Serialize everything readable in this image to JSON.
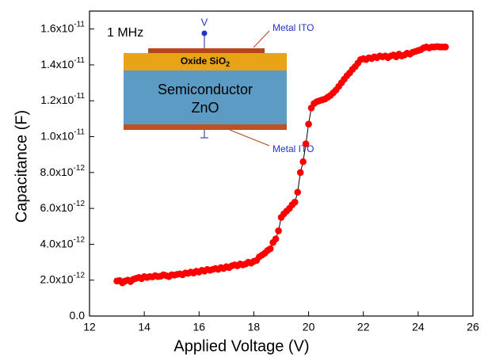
{
  "chart_data": {
    "type": "scatter-line",
    "x_label": "Applied Voltage (V)",
    "y_label": "Capacitance (F)",
    "xlim": [
      12,
      26
    ],
    "ylim": [
      0,
      1.7e-11
    ],
    "xticks": [
      12,
      14,
      16,
      18,
      20,
      22,
      24,
      26
    ],
    "yticks": [
      {
        "value": 0,
        "label": "0.0"
      },
      {
        "value": 2e-12,
        "label": "2.0x10",
        "exponent": "-12"
      },
      {
        "value": 4e-12,
        "label": "4.0x10",
        "exponent": "-12"
      },
      {
        "value": 6e-12,
        "label": "6.0x10",
        "exponent": "-12"
      },
      {
        "value": 8e-12,
        "label": "8.0x10",
        "exponent": "-12"
      },
      {
        "value": 1e-11,
        "label": "1.0x10",
        "exponent": "-11"
      },
      {
        "value": 1.2e-11,
        "label": "1.2x10",
        "exponent": "-11"
      },
      {
        "value": 1.4e-11,
        "label": "1.4x10",
        "exponent": "-11"
      },
      {
        "value": 1.6e-11,
        "label": "1.6x10",
        "exponent": "-11"
      }
    ],
    "color": "#ff0000",
    "line_color": "#000000",
    "inset": {
      "frequency": "1 MHz",
      "voltage_label": "V",
      "top_contact": "Metal ITO",
      "oxide": "Oxide SiO",
      "oxide_subscript": "2",
      "semiconductor": [
        "Semiconductor",
        "ZnO"
      ],
      "bottom_contact": "Metal ITO"
    },
    "x": [
      13.0,
      13.1,
      13.2,
      13.3,
      13.4,
      13.5,
      13.6,
      13.7,
      13.8,
      13.9,
      14.0,
      14.1,
      14.2,
      14.3,
      14.4,
      14.5,
      14.6,
      14.7,
      14.8,
      14.9,
      15.0,
      15.1,
      15.2,
      15.3,
      15.4,
      15.5,
      15.6,
      15.7,
      15.8,
      15.9,
      16.0,
      16.1,
      16.2,
      16.3,
      16.4,
      16.5,
      16.6,
      16.7,
      16.8,
      16.9,
      17.0,
      17.1,
      17.2,
      17.3,
      17.4,
      17.5,
      17.6,
      17.7,
      17.8,
      17.9,
      18.0,
      18.1,
      18.2,
      18.3,
      18.4,
      18.5,
      18.6,
      18.7,
      18.8,
      18.9,
      19.0,
      19.1,
      19.2,
      19.3,
      19.4,
      19.5,
      19.6,
      19.7,
      19.8,
      19.9,
      20.0,
      20.1,
      20.2,
      20.3,
      20.4,
      20.5,
      20.6,
      20.7,
      20.8,
      20.9,
      21.0,
      21.1,
      21.2,
      21.3,
      21.4,
      21.5,
      21.6,
      21.7,
      21.8,
      21.9,
      22.0,
      22.1,
      22.2,
      22.3,
      22.4,
      22.5,
      22.6,
      22.7,
      22.8,
      22.9,
      23.0,
      23.1,
      23.2,
      23.3,
      23.4,
      23.5,
      23.6,
      23.7,
      23.8,
      23.9,
      24.0,
      24.1,
      24.2,
      24.3,
      24.4,
      24.5,
      24.6,
      24.7,
      24.8,
      24.9,
      25.0
    ],
    "values": [
      1.95e-12,
      1.98e-12,
      1.85e-12,
      1.95e-12,
      2e-12,
      1.92e-12,
      2.05e-12,
      2.1e-12,
      2.15e-12,
      2.08e-12,
      2.2e-12,
      2.15e-12,
      2.2e-12,
      2.18e-12,
      2.25e-12,
      2.2e-12,
      2.22e-12,
      2.3e-12,
      2.25e-12,
      2.2e-12,
      2.3e-12,
      2.28e-12,
      2.32e-12,
      2.35e-12,
      2.3e-12,
      2.4e-12,
      2.38e-12,
      2.45e-12,
      2.4e-12,
      2.5e-12,
      2.45e-12,
      2.55e-12,
      2.5e-12,
      2.6e-12,
      2.55e-12,
      2.6e-12,
      2.65e-12,
      2.6e-12,
      2.7e-12,
      2.65e-12,
      2.75e-12,
      2.7e-12,
      2.8e-12,
      2.85e-12,
      2.8e-12,
      2.9e-12,
      2.85e-12,
      2.9e-12,
      3e-12,
      2.95e-12,
      3.05e-12,
      3.1e-12,
      3.3e-12,
      3.4e-12,
      3.5e-12,
      3.65e-12,
      3.75e-12,
      4.1e-12,
      4.3e-12,
      4.75e-12,
      5.5e-12,
      5.7e-12,
      5.85e-12,
      6e-12,
      6.2e-12,
      6.35e-12,
      6.9e-12,
      8e-12,
      8.6e-12,
      9.6e-12,
      1.07e-11,
      1.16e-11,
      1.185e-11,
      1.195e-11,
      1.2e-11,
      1.205e-11,
      1.21e-11,
      1.22e-11,
      1.23e-11,
      1.245e-11,
      1.26e-11,
      1.28e-11,
      1.3e-11,
      1.32e-11,
      1.34e-11,
      1.355e-11,
      1.375e-11,
      1.39e-11,
      1.41e-11,
      1.43e-11,
      1.435e-11,
      1.43e-11,
      1.44e-11,
      1.435e-11,
      1.445e-11,
      1.44e-11,
      1.45e-11,
      1.445e-11,
      1.45e-11,
      1.44e-11,
      1.45e-11,
      1.455e-11,
      1.445e-11,
      1.46e-11,
      1.45e-11,
      1.455e-11,
      1.465e-11,
      1.46e-11,
      1.47e-11,
      1.475e-11,
      1.48e-11,
      1.485e-11,
      1.495e-11,
      1.5e-11,
      1.495e-11,
      1.5e-11,
      1.5e-11,
      1.502e-11,
      1.5e-11,
      1.5e-11,
      1.5e-11
    ]
  }
}
